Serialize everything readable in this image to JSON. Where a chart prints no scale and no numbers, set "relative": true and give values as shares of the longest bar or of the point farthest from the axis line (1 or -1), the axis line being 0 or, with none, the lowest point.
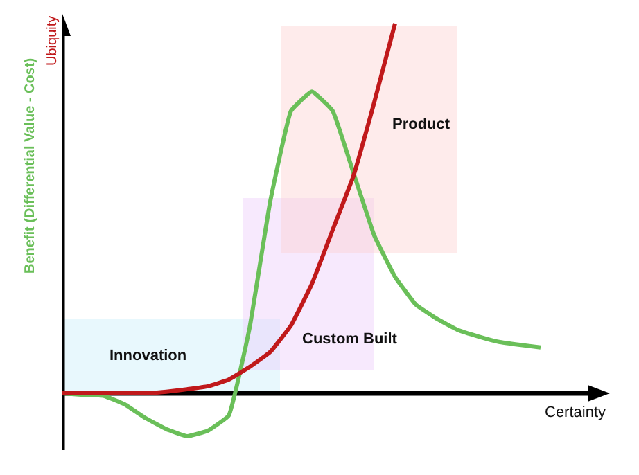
{
  "chart_data": {
    "type": "line",
    "relative": true,
    "xlabel": "Certainty",
    "ylabel": "Benefit (Differential Value - Cost)",
    "y2label": "Ubiquity",
    "categories": [
      null,
      null,
      null,
      null,
      null,
      null,
      null,
      null,
      null,
      null,
      null,
      null,
      null,
      null,
      null,
      null,
      null,
      null,
      null,
      null,
      null,
      null,
      null,
      null,
      null
    ],
    "series": [
      {
        "color": "#6abf59",
        "values": [
          0,
          -0.004,
          -0.007,
          -0.03,
          -0.067,
          -0.097,
          -0.116,
          -0.101,
          -0.06,
          0.176,
          0.52,
          0.764,
          0.816,
          0.764,
          0.596,
          0.427,
          0.315,
          0.24,
          0.202,
          0.172,
          0.154,
          0.139,
          0.131,
          0.124,
          null
        ]
      },
      {
        "color": "#c0191b",
        "values": [
          0,
          0,
          0,
          0,
          0,
          0.004,
          0.011,
          0.019,
          0.037,
          0.071,
          0.112,
          0.184,
          0.296,
          0.442,
          0.588,
          0.787,
          1.0,
          null,
          null,
          null,
          null,
          null,
          null,
          null,
          null
        ]
      }
    ],
    "annotations": [
      "Innovation",
      "Custom Built",
      "Product"
    ],
    "marker": "none",
    "line_style": "solid"
  }
}
